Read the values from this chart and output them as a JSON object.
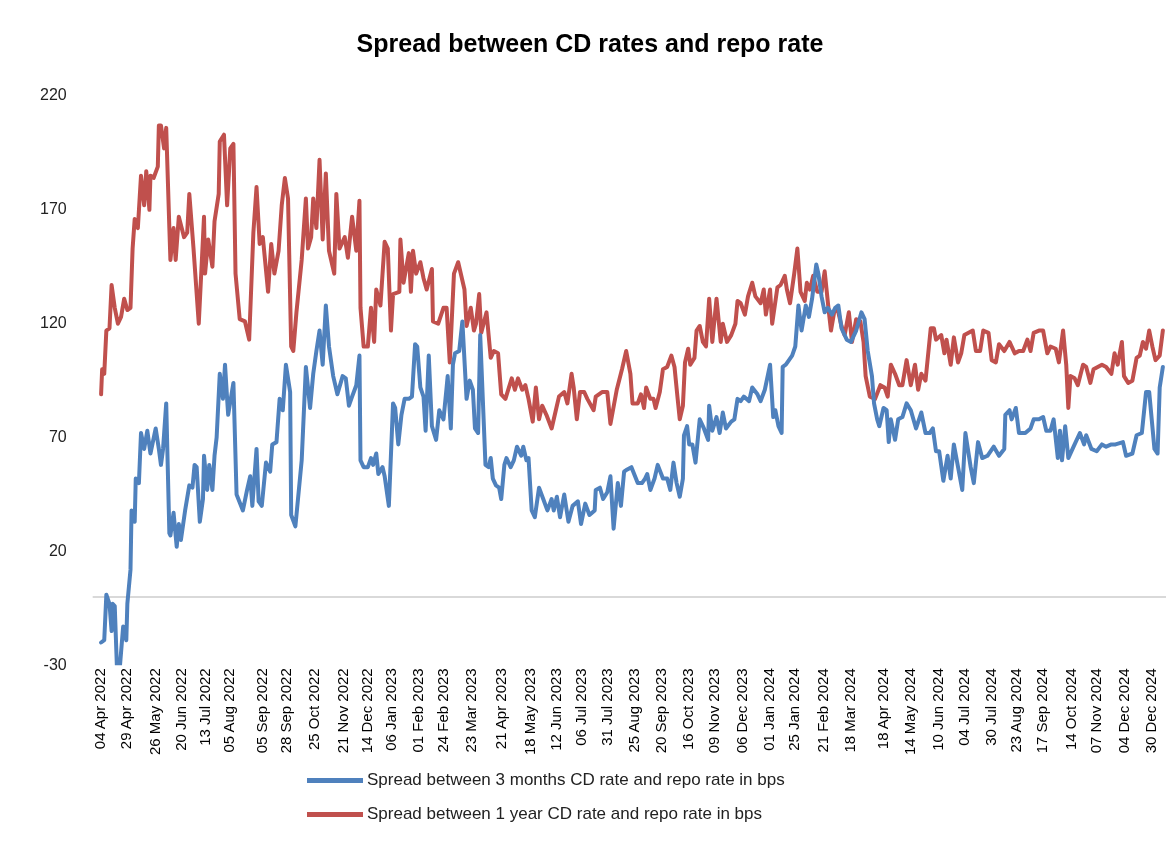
{
  "chart_data": {
    "type": "line",
    "title": "Spread between CD rates and repo rate",
    "legend": "bottom",
    "marker": "none",
    "line_style": "solid",
    "xlim": [
      "2022-03-27",
      "2025-01-12"
    ],
    "ylim": [
      -30,
      220
    ],
    "yticks": [
      220,
      170,
      120,
      70,
      20,
      -30
    ],
    "xticks": [
      {
        "value": "2022-04-04",
        "label": "04 Apr 2022"
      },
      {
        "value": "2022-04-29",
        "label": "29 Apr 2022"
      },
      {
        "value": "2022-05-26",
        "label": "26 May 2022"
      },
      {
        "value": "2022-06-20",
        "label": "20 Jun 2022"
      },
      {
        "value": "2022-07-13",
        "label": "13 Jul 2022"
      },
      {
        "value": "2022-08-05",
        "label": "05 Aug 2022"
      },
      {
        "value": "2022-09-05",
        "label": "05 Sep 2022"
      },
      {
        "value": "2022-09-28",
        "label": "28 Sep 2022"
      },
      {
        "value": "2022-10-25",
        "label": "25 Oct 2022"
      },
      {
        "value": "2022-11-21",
        "label": "21 Nov 2022"
      },
      {
        "value": "2022-12-14",
        "label": "14 Dec 2022"
      },
      {
        "value": "2023-01-06",
        "label": "06 Jan 2023"
      },
      {
        "value": "2023-02-01",
        "label": "01 Feb 2023"
      },
      {
        "value": "2023-02-24",
        "label": "24 Feb 2023"
      },
      {
        "value": "2023-03-23",
        "label": "23 Mar 2023"
      },
      {
        "value": "2023-04-21",
        "label": "21 Apr 2023"
      },
      {
        "value": "2023-05-18",
        "label": "18 May 2023"
      },
      {
        "value": "2023-06-12",
        "label": "12 Jun 2023"
      },
      {
        "value": "2023-07-06",
        "label": "06 Jul 2023"
      },
      {
        "value": "2023-07-31",
        "label": "31 Jul 2023"
      },
      {
        "value": "2023-08-25",
        "label": "25 Aug 2023"
      },
      {
        "value": "2023-09-20",
        "label": "20 Sep 2023"
      },
      {
        "value": "2023-10-16",
        "label": "16 Oct 2023"
      },
      {
        "value": "2023-11-09",
        "label": "09 Nov 2023"
      },
      {
        "value": "2023-12-06",
        "label": "06 Dec 2023"
      },
      {
        "value": "2024-01-01",
        "label": "01 Jan 2024"
      },
      {
        "value": "2024-01-25",
        "label": "25 Jan 2024"
      },
      {
        "value": "2024-02-21",
        "label": "21 Feb 2024"
      },
      {
        "value": "2024-03-18",
        "label": "18 Mar 2024"
      },
      {
        "value": "2024-04-18",
        "label": "18 Apr 2024"
      },
      {
        "value": "2024-05-14",
        "label": "14 May 2024"
      },
      {
        "value": "2024-06-10",
        "label": "10 Jun 2024"
      },
      {
        "value": "2024-07-04",
        "label": "04 Jul 2024"
      },
      {
        "value": "2024-07-30",
        "label": "30 Jul 2024"
      },
      {
        "value": "2024-08-23",
        "label": "23 Aug 2024"
      },
      {
        "value": "2024-09-17",
        "label": "17 Sep 2024"
      },
      {
        "value": "2024-10-14",
        "label": "14 Oct 2024"
      },
      {
        "value": "2024-11-07",
        "label": "07 Nov 2024"
      },
      {
        "value": "2024-12-04",
        "label": "04 Dec 2024"
      },
      {
        "value": "2024-12-30",
        "label": "30 Dec 2024"
      }
    ],
    "ref_lines": [
      {
        "axis": "y",
        "value": 0,
        "color": "#d9d9d9"
      }
    ],
    "series": [
      {
        "name": "Spread between 3 months CD rate and repo rate in bps",
        "color": "#4f81bd",
        "x": [
          "2022-04-04",
          "2022-04-07",
          "2022-04-09",
          "2022-04-12",
          "2022-04-14",
          "2022-04-15",
          "2022-04-17",
          "2022-04-19",
          "2022-04-22",
          "2022-04-25",
          "2022-04-28",
          "2022-04-29",
          "2022-05-02",
          "2022-05-03",
          "2022-05-06",
          "2022-05-07",
          "2022-05-10",
          "2022-05-12",
          "2022-05-15",
          "2022-05-18",
          "2022-05-21",
          "2022-05-26",
          "2022-05-29",
          "2022-05-31",
          "2022-06-02",
          "2022-06-05",
          "2022-06-08",
          "2022-06-09",
          "2022-06-12",
          "2022-06-15",
          "2022-06-17",
          "2022-06-19",
          "2022-06-23",
          "2022-06-27",
          "2022-06-30",
          "2022-07-02",
          "2022-07-04",
          "2022-07-07",
          "2022-07-10",
          "2022-07-11",
          "2022-07-14",
          "2022-07-16",
          "2022-07-19",
          "2022-07-21",
          "2022-07-23",
          "2022-07-26",
          "2022-07-29",
          "2022-07-31",
          "2022-08-02",
          "2022-08-03",
          "2022-08-08",
          "2022-08-11",
          "2022-08-17",
          "2022-08-21",
          "2022-08-24",
          "2022-08-26",
          "2022-08-30",
          "2022-09-01",
          "2022-09-04",
          "2022-09-08",
          "2022-09-12",
          "2022-09-14",
          "2022-09-18",
          "2022-09-21",
          "2022-09-24",
          "2022-09-27",
          "2022-10-01",
          "2022-10-02",
          "2022-10-06",
          "2022-10-12",
          "2022-10-16",
          "2022-10-20",
          "2022-10-23",
          "2022-10-26",
          "2022-10-29",
          "2022-11-01",
          "2022-11-04",
          "2022-11-07",
          "2022-11-11",
          "2022-11-15",
          "2022-11-20",
          "2022-11-23",
          "2022-11-26",
          "2022-11-29",
          "2022-12-03",
          "2022-12-06",
          "2022-12-07",
          "2022-12-10",
          "2022-12-14",
          "2022-12-17",
          "2022-12-19",
          "2022-12-22",
          "2022-12-24",
          "2022-12-28",
          "2022-12-30",
          "2023-01-03",
          "2023-01-07",
          "2023-01-09",
          "2023-01-12",
          "2023-01-15",
          "2023-01-18",
          "2023-01-22",
          "2023-01-25",
          "2023-01-28",
          "2023-01-30",
          "2023-02-02",
          "2023-02-05",
          "2023-02-07",
          "2023-02-10",
          "2023-02-13",
          "2023-02-17",
          "2023-02-20",
          "2023-02-24",
          "2023-02-27",
          "2023-02-28",
          "2023-03-03",
          "2023-03-05",
          "2023-03-07",
          "2023-03-11",
          "2023-03-14",
          "2023-03-18",
          "2023-03-21",
          "2023-03-24",
          "2023-03-26",
          "2023-03-29",
          "2023-03-31",
          "2023-04-05",
          "2023-04-08",
          "2023-04-10",
          "2023-04-12",
          "2023-04-15",
          "2023-04-18",
          "2023-04-20",
          "2023-04-23",
          "2023-04-25",
          "2023-04-29",
          "2023-05-02",
          "2023-05-05",
          "2023-05-09",
          "2023-05-11",
          "2023-05-14",
          "2023-05-16",
          "2023-05-19",
          "2023-05-22",
          "2023-05-26",
          "2023-05-30",
          "2023-06-03",
          "2023-06-07",
          "2023-06-09",
          "2023-06-12",
          "2023-06-15",
          "2023-06-19",
          "2023-06-23",
          "2023-06-27",
          "2023-07-02",
          "2023-07-05",
          "2023-07-09",
          "2023-07-13",
          "2023-07-18",
          "2023-07-19",
          "2023-07-23",
          "2023-07-26",
          "2023-07-30",
          "2023-08-02",
          "2023-08-05",
          "2023-08-09",
          "2023-08-12",
          "2023-08-15",
          "2023-08-18",
          "2023-08-22",
          "2023-08-28",
          "2023-09-01",
          "2023-09-04",
          "2023-09-06",
          "2023-09-09",
          "2023-09-13",
          "2023-09-16",
          "2023-09-21",
          "2023-09-25",
          "2023-09-28",
          "2023-10-01",
          "2023-10-04",
          "2023-10-07",
          "2023-10-10",
          "2023-10-11",
          "2023-10-14",
          "2023-10-16",
          "2023-10-19",
          "2023-10-22",
          "2023-10-26",
          "2023-10-30",
          "2023-11-03",
          "2023-11-04",
          "2023-11-07",
          "2023-11-11",
          "2023-11-14",
          "2023-11-17",
          "2023-11-20",
          "2023-11-25",
          "2023-11-28",
          "2023-12-01",
          "2023-12-04",
          "2023-12-07",
          "2023-12-12",
          "2023-12-15",
          "2023-12-20",
          "2023-12-23",
          "2023-12-27",
          "2024-01-01",
          "2024-01-04",
          "2024-01-06",
          "2024-01-09",
          "2024-01-12",
          "2024-01-13",
          "2024-01-16",
          "2024-01-19",
          "2024-01-22",
          "2024-01-25",
          "2024-01-28",
          "2024-01-31",
          "2024-02-04",
          "2024-02-07",
          "2024-02-10",
          "2024-02-14",
          "2024-02-16",
          "2024-02-19",
          "2024-02-22",
          "2024-02-25",
          "2024-02-29",
          "2024-03-03",
          "2024-03-06",
          "2024-03-09",
          "2024-03-14",
          "2024-03-18",
          "2024-03-23",
          "2024-03-28",
          "2024-03-31",
          "2024-04-03",
          "2024-04-07",
          "2024-04-09",
          "2024-04-12",
          "2024-04-14",
          "2024-04-18",
          "2024-04-21",
          "2024-04-23",
          "2024-04-25",
          "2024-04-29",
          "2024-05-02",
          "2024-05-06",
          "2024-05-10",
          "2024-05-14",
          "2024-05-19",
          "2024-05-24",
          "2024-05-28",
          "2024-06-01",
          "2024-06-04",
          "2024-06-07",
          "2024-06-10",
          "2024-06-14",
          "2024-06-18",
          "2024-06-21",
          "2024-06-24",
          "2024-06-28",
          "2024-07-02",
          "2024-07-05",
          "2024-07-10",
          "2024-07-13",
          "2024-07-17",
          "2024-07-21",
          "2024-07-26",
          "2024-08-01",
          "2024-08-06",
          "2024-08-11",
          "2024-08-12",
          "2024-08-16",
          "2024-08-18",
          "2024-08-22",
          "2024-08-25",
          "2024-08-31",
          "2024-09-05",
          "2024-09-08",
          "2024-09-13",
          "2024-09-17",
          "2024-09-20",
          "2024-09-24",
          "2024-09-27",
          "2024-10-01",
          "2024-10-03",
          "2024-10-05",
          "2024-10-08",
          "2024-10-11",
          "2024-10-16",
          "2024-10-22",
          "2024-10-26",
          "2024-10-28",
          "2024-11-02",
          "2024-11-07",
          "2024-11-12",
          "2024-11-16",
          "2024-11-21",
          "2024-11-25",
          "2024-12-02",
          "2024-12-05",
          "2024-12-11",
          "2024-12-15",
          "2024-12-20",
          "2024-12-24",
          "2024-12-27",
          "2025-01-01",
          "2025-01-04",
          "2025-01-06",
          "2025-01-09"
        ],
        "values": [
          -20,
          -19,
          1,
          -3,
          -15,
          -3,
          -4,
          -30,
          -30,
          -13,
          -19,
          -3,
          12,
          38,
          33,
          52,
          50,
          72,
          65,
          73,
          63,
          74,
          65,
          58,
          65,
          85,
          28,
          27,
          37,
          22,
          32,
          25,
          38,
          49,
          48,
          58,
          57,
          33,
          43,
          62,
          47,
          58,
          47,
          62,
          70,
          98,
          87,
          102,
          87,
          80,
          94,
          45,
          38,
          47,
          53,
          40,
          65,
          42,
          40,
          59,
          55,
          67,
          68,
          87,
          82,
          102,
          90,
          36,
          31,
          60,
          101,
          83,
          98,
          108,
          117,
          102,
          128,
          110,
          97,
          89,
          97,
          96,
          84,
          88,
          93,
          106,
          60,
          57,
          57,
          61,
          58,
          63,
          54,
          57,
          53,
          40,
          85,
          83,
          67,
          80,
          87,
          87,
          88,
          111,
          110,
          92,
          88,
          73,
          106,
          75,
          69,
          82,
          78,
          92,
          97,
          74,
          102,
          107,
          108,
          121,
          87,
          95,
          91,
          74,
          72,
          115,
          58,
          57,
          61,
          52,
          49,
          48,
          43,
          58,
          61,
          57,
          60,
          66,
          62,
          66,
          60,
          61,
          38,
          35,
          48,
          43,
          38,
          43,
          38,
          44,
          35,
          45,
          33,
          40,
          42,
          32,
          41,
          36,
          38,
          47,
          48,
          43,
          46,
          53,
          30,
          50,
          40,
          55,
          56,
          57,
          50,
          50,
          52,
          54,
          47,
          52,
          58,
          52,
          52,
          47,
          59,
          50,
          44,
          52,
          71,
          75,
          67,
          67,
          59,
          78,
          74,
          69,
          84,
          73,
          79,
          72,
          81,
          74,
          77,
          78,
          87,
          86,
          88,
          86,
          92,
          89,
          86,
          91,
          102,
          79,
          82,
          75,
          72,
          101,
          102,
          104,
          106,
          110,
          128,
          117,
          128,
          123,
          131,
          146,
          142,
          132,
          125,
          127,
          124,
          127,
          128,
          118,
          113,
          112,
          117,
          125,
          122,
          108,
          97,
          85,
          78,
          75,
          83,
          82,
          68,
          78,
          69,
          78,
          79,
          85,
          82,
          74,
          81,
          72,
          72,
          74,
          64,
          64,
          51,
          62,
          52,
          67,
          57,
          47,
          72,
          57,
          50,
          68,
          61,
          62,
          66,
          62,
          65,
          80,
          82,
          78,
          83,
          72,
          72,
          74,
          78,
          78,
          79,
          73,
          73,
          78,
          61,
          73,
          60,
          75,
          61,
          66,
          72,
          67,
          71,
          65,
          64,
          67,
          66,
          67,
          67,
          68,
          62,
          63,
          71,
          72,
          90,
          90,
          65,
          63,
          92,
          101
        ]
      },
      {
        "name": "Spread between 1 year CD rate and repo rate in bps",
        "color": "#c0504d",
        "x": [
          "2022-04-04",
          "2022-04-05",
          "2022-04-07",
          "2022-04-09",
          "2022-04-12",
          "2022-04-14",
          "2022-04-17",
          "2022-04-20",
          "2022-04-23",
          "2022-04-26",
          "2022-04-29",
          "2022-05-02",
          "2022-05-04",
          "2022-05-06",
          "2022-05-09",
          "2022-05-12",
          "2022-05-15",
          "2022-05-17",
          "2022-05-20",
          "2022-05-21",
          "2022-05-24",
          "2022-05-28",
          "2022-05-29",
          "2022-05-31",
          "2022-06-03",
          "2022-06-05",
          "2022-06-08",
          "2022-06-09",
          "2022-06-12",
          "2022-06-14",
          "2022-06-17",
          "2022-06-22",
          "2022-06-25",
          "2022-06-27",
          "2022-07-01",
          "2022-07-06",
          "2022-07-11",
          "2022-07-12",
          "2022-07-15",
          "2022-07-19",
          "2022-07-21",
          "2022-07-25",
          "2022-07-26",
          "2022-07-30",
          "2022-08-02",
          "2022-08-05",
          "2022-08-08",
          "2022-08-10",
          "2022-08-14",
          "2022-08-19",
          "2022-08-23",
          "2022-08-27",
          "2022-08-30",
          "2022-09-02",
          "2022-09-05",
          "2022-09-10",
          "2022-09-13",
          "2022-09-16",
          "2022-09-20",
          "2022-09-23",
          "2022-09-26",
          "2022-09-29",
          "2022-10-02",
          "2022-10-04",
          "2022-10-07",
          "2022-10-12",
          "2022-10-16",
          "2022-10-18",
          "2022-10-21",
          "2022-10-23",
          "2022-10-26",
          "2022-10-29",
          "2022-11-01",
          "2022-11-04",
          "2022-11-07",
          "2022-11-12",
          "2022-11-14",
          "2022-11-17",
          "2022-11-22",
          "2022-11-25",
          "2022-11-29",
          "2022-12-03",
          "2022-12-06",
          "2022-12-07",
          "2022-12-10",
          "2022-12-14",
          "2022-12-17",
          "2022-12-20",
          "2022-12-22",
          "2022-12-26",
          "2022-12-30",
          "2023-01-02",
          "2023-01-05",
          "2023-01-07",
          "2023-01-13",
          "2023-01-14",
          "2023-01-17",
          "2023-01-22",
          "2023-01-24",
          "2023-01-26",
          "2023-01-29",
          "2023-02-02",
          "2023-02-05",
          "2023-02-08",
          "2023-02-13",
          "2023-02-14",
          "2023-02-19",
          "2023-02-24",
          "2023-02-27",
          "2023-03-02",
          "2023-03-06",
          "2023-03-10",
          "2023-03-16",
          "2023-03-18",
          "2023-03-22",
          "2023-03-25",
          "2023-03-27",
          "2023-03-30",
          "2023-04-01",
          "2023-04-06",
          "2023-04-10",
          "2023-04-13",
          "2023-04-17",
          "2023-04-20",
          "2023-04-24",
          "2023-04-30",
          "2023-05-03",
          "2023-05-06",
          "2023-05-10",
          "2023-05-13",
          "2023-05-16",
          "2023-05-20",
          "2023-05-23",
          "2023-05-26",
          "2023-05-29",
          "2023-06-02",
          "2023-06-07",
          "2023-06-11",
          "2023-06-14",
          "2023-06-19",
          "2023-06-22",
          "2023-06-26",
          "2023-06-28",
          "2023-07-01",
          "2023-07-04",
          "2023-07-08",
          "2023-07-11",
          "2023-07-17",
          "2023-07-19",
          "2023-07-25",
          "2023-07-30",
          "2023-08-02",
          "2023-08-08",
          "2023-08-13",
          "2023-08-17",
          "2023-08-21",
          "2023-08-23",
          "2023-08-28",
          "2023-08-31",
          "2023-09-03",
          "2023-09-05",
          "2023-09-09",
          "2023-09-12",
          "2023-09-14",
          "2023-09-18",
          "2023-09-21",
          "2023-09-25",
          "2023-09-29",
          "2023-10-02",
          "2023-10-05",
          "2023-10-07",
          "2023-10-10",
          "2023-10-12",
          "2023-10-15",
          "2023-10-17",
          "2023-10-21",
          "2023-10-23",
          "2023-10-26",
          "2023-10-29",
          "2023-11-01",
          "2023-11-04",
          "2023-11-07",
          "2023-11-11",
          "2023-11-15",
          "2023-11-17",
          "2023-11-21",
          "2023-11-25",
          "2023-11-29",
          "2023-12-01",
          "2023-12-04",
          "2023-12-08",
          "2023-12-11",
          "2023-12-15",
          "2023-12-18",
          "2023-12-23",
          "2023-12-26",
          "2023-12-28",
          "2024-01-01",
          "2024-01-03",
          "2024-01-08",
          "2024-01-11",
          "2024-01-15",
          "2024-01-17",
          "2024-01-20",
          "2024-01-24",
          "2024-01-27",
          "2024-01-30",
          "2024-02-03",
          "2024-02-05",
          "2024-02-08",
          "2024-02-11",
          "2024-02-15",
          "2024-02-19",
          "2024-02-22",
          "2024-02-26",
          "2024-02-28",
          "2024-03-02",
          "2024-03-05",
          "2024-03-09",
          "2024-03-12",
          "2024-03-16",
          "2024-03-19",
          "2024-03-23",
          "2024-03-27",
          "2024-03-30",
          "2024-04-01",
          "2024-04-05",
          "2024-04-10",
          "2024-04-15",
          "2024-04-19",
          "2024-04-22",
          "2024-04-25",
          "2024-04-29",
          "2024-05-03",
          "2024-05-06",
          "2024-05-10",
          "2024-05-14",
          "2024-05-18",
          "2024-05-21",
          "2024-05-24",
          "2024-05-28",
          "2024-06-02",
          "2024-06-05",
          "2024-06-07",
          "2024-06-12",
          "2024-06-15",
          "2024-06-17",
          "2024-06-21",
          "2024-06-24",
          "2024-06-28",
          "2024-07-01",
          "2024-07-04",
          "2024-07-12",
          "2024-07-15",
          "2024-07-19",
          "2024-07-22",
          "2024-07-27",
          "2024-07-30",
          "2024-08-03",
          "2024-08-06",
          "2024-08-11",
          "2024-08-16",
          "2024-08-21",
          "2024-08-25",
          "2024-08-29",
          "2024-09-02",
          "2024-09-05",
          "2024-09-08",
          "2024-09-13",
          "2024-09-17",
          "2024-09-21",
          "2024-09-24",
          "2024-09-29",
          "2024-10-02",
          "2024-10-06",
          "2024-10-09",
          "2024-10-11",
          "2024-10-13",
          "2024-10-17",
          "2024-10-20",
          "2024-10-25",
          "2024-10-28",
          "2024-11-01",
          "2024-11-04",
          "2024-11-08",
          "2024-11-12",
          "2024-11-16",
          "2024-11-21",
          "2024-11-24",
          "2024-11-27",
          "2024-12-01",
          "2024-12-03",
          "2024-12-07",
          "2024-12-11",
          "2024-12-15",
          "2024-12-18",
          "2024-12-21",
          "2024-12-24",
          "2024-12-27",
          "2024-12-30",
          "2025-01-02",
          "2025-01-06",
          "2025-01-09"
        ],
        "values": [
          89,
          100,
          98,
          117,
          118,
          137,
          127,
          120,
          123,
          131,
          126,
          127,
          153,
          166,
          162,
          185,
          172,
          187,
          170,
          185,
          184,
          189,
          207,
          207,
          197,
          206,
          162,
          148,
          162,
          148,
          167,
          158,
          160,
          177,
          153,
          120,
          167,
          142,
          157,
          145,
          165,
          177,
          200,
          203,
          172,
          197,
          199,
          142,
          122,
          121,
          113,
          160,
          180,
          155,
          158,
          134,
          155,
          142,
          152,
          172,
          184,
          175,
          110,
          108,
          125,
          148,
          175,
          153,
          158,
          175,
          162,
          192,
          157,
          186,
          152,
          142,
          177,
          153,
          158,
          149,
          167,
          152,
          174,
          127,
          110,
          110,
          127,
          112,
          135,
          128,
          156,
          153,
          117,
          133,
          134,
          157,
          138,
          151,
          134,
          152,
          142,
          147,
          140,
          135,
          144,
          121,
          120,
          127,
          127,
          103,
          142,
          147,
          135,
          119,
          127,
          117,
          120,
          133,
          116,
          125,
          105,
          108,
          107,
          89,
          87,
          96,
          91,
          96,
          91,
          93,
          87,
          77,
          92,
          78,
          84,
          80,
          74,
          82,
          88,
          90,
          85,
          98,
          92,
          78,
          90,
          90,
          87,
          82,
          88,
          90,
          90,
          76,
          91,
          100,
          108,
          98,
          85,
          85,
          89,
          83,
          92,
          87,
          87,
          83,
          90,
          100,
          101,
          106,
          101,
          87,
          78,
          84,
          103,
          109,
          102,
          105,
          117,
          119,
          112,
          110,
          131,
          112,
          131,
          112,
          120,
          112,
          115,
          120,
          130,
          129,
          124,
          132,
          138,
          132,
          129,
          135,
          124,
          135,
          120,
          136,
          137,
          141,
          135,
          129,
          142,
          153,
          134,
          130,
          138,
          135,
          141,
          134,
          134,
          143,
          125,
          117,
          125,
          127,
          119,
          115,
          125,
          112,
          122,
          121,
          112,
          97,
          88,
          87,
          93,
          92,
          88,
          102,
          98,
          93,
          93,
          104,
          93,
          102,
          91,
          98,
          95,
          118,
          118,
          113,
          115,
          107,
          113,
          102,
          114,
          103,
          107,
          115,
          117,
          108,
          108,
          117,
          116,
          104,
          103,
          111,
          108,
          112,
          107,
          108,
          108,
          113,
          108,
          116,
          117,
          117,
          107,
          110,
          109,
          103,
          117,
          102,
          83,
          97,
          96,
          93,
          102,
          101,
          94,
          100,
          101,
          102,
          101,
          98,
          107,
          102,
          112,
          97,
          94,
          95,
          105,
          106,
          112,
          109,
          117,
          110,
          104,
          106,
          117
        ]
      }
    ]
  }
}
